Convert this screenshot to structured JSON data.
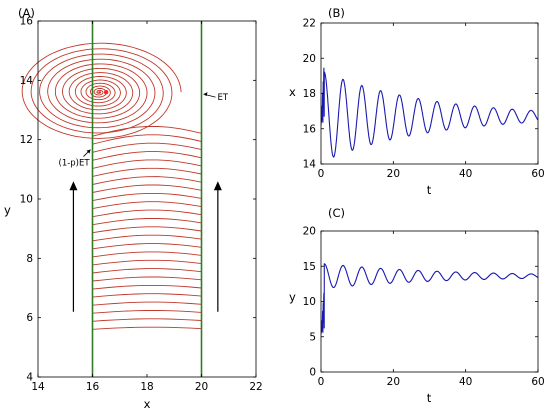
{
  "chart_data": [
    {
      "panel_label": "(A)",
      "type": "line",
      "xlabel": "x",
      "ylabel": "y",
      "xlim": [
        14,
        22
      ],
      "ylim": [
        4,
        16
      ],
      "xticks": [
        "14",
        "16",
        "18",
        "20",
        "22"
      ],
      "yticks": [
        "4",
        "6",
        "8",
        "10",
        "12",
        "14",
        "16"
      ],
      "switching_lines": {
        "left_x": 16,
        "right_x": 20,
        "color": "#2e7d22"
      },
      "focus": {
        "x": 16.5,
        "y": 13.6
      },
      "trajectory_color": "#c0392b",
      "annotations": [
        {
          "text": "ET",
          "x": 20,
          "y": 13.5
        },
        {
          "text": "(1-p)ET",
          "x": 16,
          "y": 11.7
        }
      ],
      "arrows": [
        {
          "x": 15.3,
          "from_y": 6.2,
          "to_y": 10.6
        },
        {
          "x": 20.6,
          "from_y": 6.2,
          "to_y": 10.6
        }
      ]
    },
    {
      "panel_label": "(B)",
      "type": "line",
      "xlabel": "t",
      "ylabel": "x",
      "xlim": [
        0,
        60
      ],
      "ylim": [
        14,
        22
      ],
      "xticks": [
        "0",
        "20",
        "40",
        "60"
      ],
      "yticks": [
        "14",
        "16",
        "18",
        "20",
        "22"
      ],
      "series": [
        {
          "color": "#1a1ab0",
          "mean": 16.7,
          "amplitude": 2.6,
          "decay": 0.035,
          "period": 5.2
        }
      ]
    },
    {
      "panel_label": "(C)",
      "type": "line",
      "xlabel": "t",
      "ylabel": "y",
      "xlim": [
        0,
        60
      ],
      "ylim": [
        0,
        20
      ],
      "xticks": [
        "0",
        "20",
        "40",
        "60"
      ],
      "yticks": [
        "0",
        "5",
        "10",
        "15",
        "20"
      ],
      "series": [
        {
          "color": "#1a1ab0",
          "mean": 13.6,
          "amplitude": 1.8,
          "decay": 0.03,
          "period": 5.2
        }
      ]
    }
  ]
}
